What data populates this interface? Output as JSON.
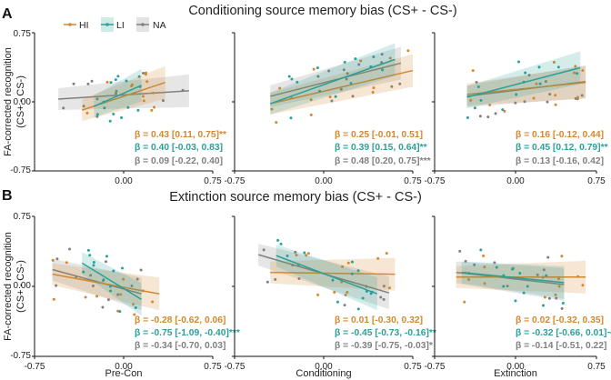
{
  "figure": {
    "row_labels": [
      "A",
      "B"
    ],
    "y_axis_title_line1": "FA-corrected recognition",
    "y_axis_title_line2": "(CS+ - CS-)",
    "legend": [
      {
        "label": "HI",
        "color": "#d4882e"
      },
      {
        "label": "LI",
        "color": "#2aa198"
      },
      {
        "label": "NA",
        "color": "#808080"
      }
    ]
  },
  "chart_data": [
    {
      "type": "scatter",
      "row": "A",
      "title": "Conditioning source memory bias (CS+ - CS-)",
      "y_ticks": [
        "0.75",
        "0.00",
        "-0.75"
      ],
      "ylim": [
        -0.75,
        0.75
      ],
      "xlim": [
        -0.75,
        0.75
      ],
      "panels": [
        {
          "x_ticks": [
            "0.00",
            "0.75"
          ],
          "xlabel": "",
          "lines": {
            "HI": [
              -0.35,
              0.35,
              -0.09,
              0.21
            ],
            "LI": [
              -0.25,
              0.15,
              -0.05,
              0.18
            ],
            "NA": [
              -0.55,
              0.55,
              0.03,
              0.12
            ]
          },
          "stats": [
            {
              "group": "HI",
              "text": "β = 0.43 [0.11, 0.75]**"
            },
            {
              "group": "LI",
              "text": "β = 0.40 [-0.03, 0.83]"
            },
            {
              "group": "NA",
              "text": "β = 0.09 [-0.22, 0.40]"
            }
          ]
        },
        {
          "x_ticks": [
            "-0.75",
            "0.00",
            "0.75"
          ],
          "xlabel": "",
          "lines": {
            "HI": [
              -0.45,
              0.75,
              -0.02,
              0.34
            ],
            "LI": [
              -0.45,
              0.6,
              -0.02,
              0.46
            ],
            "NA": [
              -0.45,
              0.65,
              0.06,
              0.42
            ]
          },
          "stats": [
            {
              "group": "HI",
              "text": "β = 0.25 [-0.01, 0.51]"
            },
            {
              "group": "LI",
              "text": "β = 0.39 [0.15, 0.64]**"
            },
            {
              "group": "NA",
              "text": "β = 0.48 [0.20, 0.75]***"
            }
          ]
        },
        {
          "x_ticks": [
            "-0.75",
            "0.00",
            "0.75"
          ],
          "xlabel": "",
          "lines": {
            "HI": [
              -0.45,
              0.65,
              0.08,
              0.21
            ],
            "LI": [
              -0.45,
              0.6,
              0.05,
              0.37
            ],
            "NA": [
              -0.45,
              0.65,
              0.06,
              0.22
            ]
          },
          "stats": [
            {
              "group": "HI",
              "text": "β = 0.16 [-0.12, 0.44]"
            },
            {
              "group": "LI",
              "text": "β = 0.45 [0.12, 0.79]**"
            },
            {
              "group": "NA",
              "text": "β = 0.13 [-0.16, 0.42]"
            }
          ]
        }
      ]
    },
    {
      "type": "scatter",
      "row": "B",
      "title": "Extinction source memory bias (CS+ - CS-)",
      "y_ticks": [
        "0.75",
        "0.00",
        "-0.75"
      ],
      "ylim": [
        -0.75,
        0.75
      ],
      "xlim": [
        -0.75,
        0.75
      ],
      "panels": [
        {
          "x_ticks": [
            "-0.75",
            "0.00",
            "0.75"
          ],
          "xlabel": "Pre-Con",
          "lines": {
            "HI": [
              -0.6,
              0.3,
              0.13,
              -0.08
            ],
            "LI": [
              -0.35,
              0.15,
              0.25,
              -0.14
            ],
            "NA": [
              -0.6,
              0.15,
              0.18,
              -0.08
            ]
          },
          "stats": [
            {
              "group": "HI",
              "text": "β = -0.28 [-0.62, 0.06]"
            },
            {
              "group": "LI",
              "text": "β = -0.75 [-1.09, -0.40]***"
            },
            {
              "group": "NA",
              "text": "β = -0.34 [-0.70, 0.03]"
            }
          ]
        },
        {
          "x_ticks": [
            "-0.75",
            "0.00",
            "0.75"
          ],
          "xlabel": "Conditioning",
          "lines": {
            "HI": [
              -0.45,
              0.6,
              0.15,
              0.13
            ],
            "LI": [
              -0.4,
              0.45,
              0.33,
              -0.08
            ],
            "NA": [
              -0.55,
              0.55,
              0.34,
              -0.07
            ]
          },
          "stats": [
            {
              "group": "HI",
              "text": "β = 0.01 [-0.30, 0.32]"
            },
            {
              "group": "LI",
              "text": "β = -0.45 [-0.73, -0.16]**"
            },
            {
              "group": "NA",
              "text": "β = -0.39 [-0.75, -0.03]*"
            }
          ]
        },
        {
          "x_ticks": [
            "-0.75",
            "0.00",
            "0.75"
          ],
          "xlabel": "Extinction",
          "lines": {
            "HI": [
              -0.55,
              0.65,
              0.1,
              0.1
            ],
            "LI": [
              -0.5,
              0.45,
              0.15,
              0.04
            ],
            "NA": [
              -0.55,
              0.45,
              0.15,
              0.02
            ]
          },
          "stats": [
            {
              "group": "HI",
              "text": "β = 0.02 [-0.32, 0.35]"
            },
            {
              "group": "LI",
              "text": "β = -0.32 [-0.66, 0.01]~"
            },
            {
              "group": "NA",
              "text": "β = -0.14 [-0.51, 0.22]"
            }
          ]
        }
      ]
    }
  ]
}
